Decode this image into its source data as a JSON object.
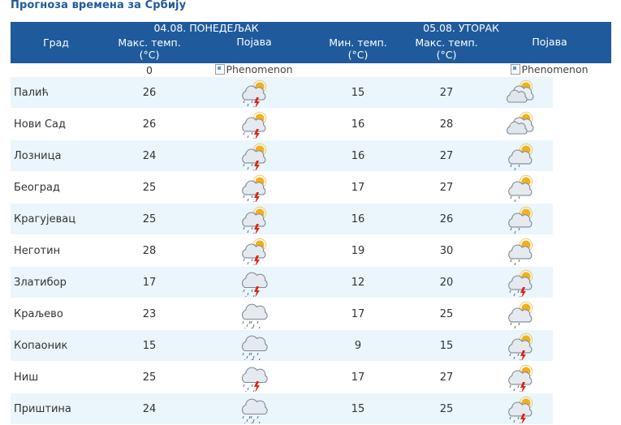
{
  "page_title": "Прогноза времена за Србију",
  "days": [
    {
      "date_label": "04.08. ПОНЕДЕЉАК"
    },
    {
      "date_label": "05.08. УТОРАК"
    }
  ],
  "headers": {
    "city": "Град",
    "max_temp_line1": "Макс. темп.",
    "max_temp_line2": "(°C)",
    "phenomenon": "Појава",
    "min_temp_line1": "Мин. темп.",
    "min_temp_line2": "(°C)",
    "max_temp2_line1": "Макс. темп.",
    "max_temp2_line2": "(°C)",
    "phenomenon2": "Појава"
  },
  "extra_row": {
    "max_temp": "0",
    "phenomenon_alt": "Phenomenon",
    "phenomenon2_alt": "Phenomenon"
  },
  "rows": [
    {
      "city": "Палић",
      "d1_max": "26",
      "d1_icon": "partly-cloudy-thunderstorm-icon",
      "d2_min": "15",
      "d2_max": "27",
      "d2_icon": "partly-cloudy-icon"
    },
    {
      "city": "Нови Сад",
      "d1_max": "26",
      "d1_icon": "partly-cloudy-thunderstorm-icon",
      "d2_min": "16",
      "d2_max": "28",
      "d2_icon": "partly-cloudy-icon"
    },
    {
      "city": "Лозница",
      "d1_max": "24",
      "d1_icon": "partly-cloudy-thunderstorm-icon",
      "d2_min": "16",
      "d2_max": "27",
      "d2_icon": "partly-cloudy-showers-icon"
    },
    {
      "city": "Београд",
      "d1_max": "25",
      "d1_icon": "partly-cloudy-thunderstorm-icon",
      "d2_min": "17",
      "d2_max": "27",
      "d2_icon": "partly-cloudy-showers-icon"
    },
    {
      "city": "Крагујевац",
      "d1_max": "25",
      "d1_icon": "partly-cloudy-thunderstorm-icon",
      "d2_min": "16",
      "d2_max": "26",
      "d2_icon": "partly-cloudy-showers-icon"
    },
    {
      "city": "Неготин",
      "d1_max": "28",
      "d1_icon": "partly-cloudy-thunderstorm-icon",
      "d2_min": "19",
      "d2_max": "30",
      "d2_icon": "partly-cloudy-showers-icon"
    },
    {
      "city": "Златибор",
      "d1_max": "17",
      "d1_icon": "cloudy-thunderstorm-icon",
      "d2_min": "12",
      "d2_max": "20",
      "d2_icon": "partly-cloudy-thunderstorm-icon"
    },
    {
      "city": "Краљево",
      "d1_max": "23",
      "d1_icon": "cloudy-showers-icon",
      "d2_min": "17",
      "d2_max": "25",
      "d2_icon": "partly-cloudy-showers-icon"
    },
    {
      "city": "Копаоник",
      "d1_max": "15",
      "d1_icon": "cloudy-showers-icon",
      "d2_min": "9",
      "d2_max": "15",
      "d2_icon": "partly-cloudy-thunderstorm-icon"
    },
    {
      "city": "Ниш",
      "d1_max": "25",
      "d1_icon": "cloudy-thunderstorm-icon",
      "d2_min": "17",
      "d2_max": "27",
      "d2_icon": "partly-cloudy-thunderstorm-icon"
    },
    {
      "city": "Приштина",
      "d1_max": "24",
      "d1_icon": "cloudy-showers-icon",
      "d2_min": "15",
      "d2_max": "25",
      "d2_icon": "partly-cloudy-thunderstorm-icon"
    }
  ],
  "colors": {
    "header_bg": "#1f5a9c",
    "title": "#1f5a9c",
    "row_band": "#eaf6fb",
    "sun": "#f2b01e",
    "lightning": "#d9281c"
  }
}
